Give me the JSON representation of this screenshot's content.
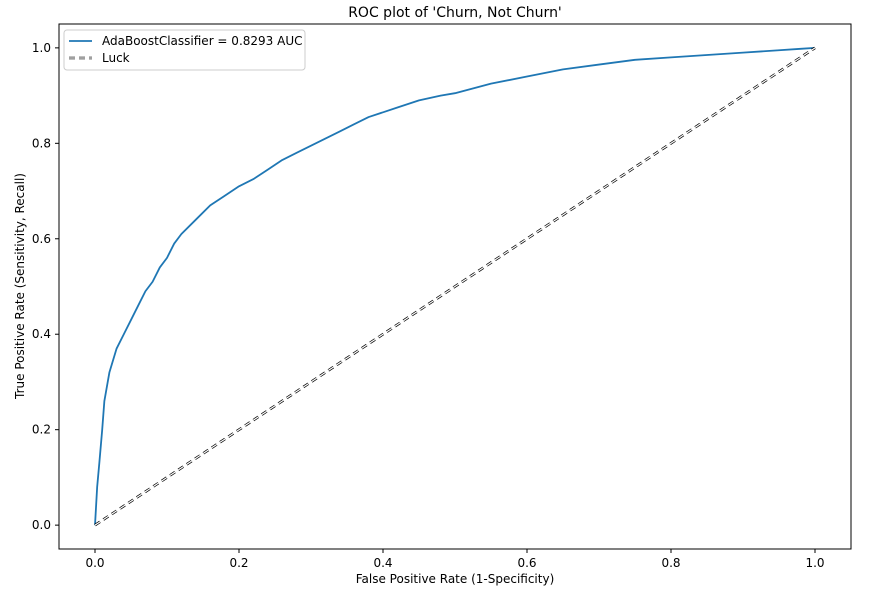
{
  "colors": {
    "series": "#1f77b4",
    "luck": "#000000",
    "axis": "#000000",
    "background": "#ffffff"
  },
  "chart_data": {
    "type": "line",
    "title": "ROC plot of 'Churn, Not Churn'",
    "xlabel": "False Positive Rate (1-Specificity)",
    "ylabel": "True Positive Rate (Sensitivity, Recall)",
    "xlim": [
      -0.05,
      1.05
    ],
    "ylim": [
      -0.05,
      1.05
    ],
    "grid": false,
    "legend_position": "top-left",
    "x_ticks": [
      "0.0",
      "0.2",
      "0.4",
      "0.6",
      "0.8",
      "1.0"
    ],
    "y_ticks": [
      "0.0",
      "0.2",
      "0.4",
      "0.6",
      "0.8",
      "1.0"
    ],
    "series": [
      {
        "name": "AdaBoostClassifier = 0.8293 AUC",
        "style": "solid",
        "x": [
          0.0,
          0.003,
          0.006,
          0.01,
          0.013,
          0.02,
          0.03,
          0.04,
          0.05,
          0.06,
          0.07,
          0.08,
          0.09,
          0.1,
          0.11,
          0.12,
          0.14,
          0.16,
          0.18,
          0.2,
          0.22,
          0.24,
          0.26,
          0.28,
          0.3,
          0.32,
          0.34,
          0.36,
          0.38,
          0.4,
          0.42,
          0.45,
          0.48,
          0.5,
          0.55,
          0.6,
          0.65,
          0.7,
          0.75,
          0.8,
          0.85,
          0.9,
          0.95,
          0.98,
          1.0
        ],
        "y": [
          0.0,
          0.08,
          0.13,
          0.2,
          0.26,
          0.32,
          0.37,
          0.4,
          0.43,
          0.46,
          0.49,
          0.51,
          0.54,
          0.56,
          0.59,
          0.61,
          0.64,
          0.67,
          0.69,
          0.71,
          0.725,
          0.745,
          0.765,
          0.78,
          0.795,
          0.81,
          0.825,
          0.84,
          0.855,
          0.865,
          0.875,
          0.89,
          0.9,
          0.905,
          0.925,
          0.94,
          0.955,
          0.965,
          0.975,
          0.98,
          0.985,
          0.99,
          0.995,
          0.998,
          1.0
        ]
      },
      {
        "name": "Luck",
        "style": "dashed",
        "x": [
          0.0,
          1.0
        ],
        "y": [
          0.0,
          1.0
        ]
      }
    ]
  }
}
